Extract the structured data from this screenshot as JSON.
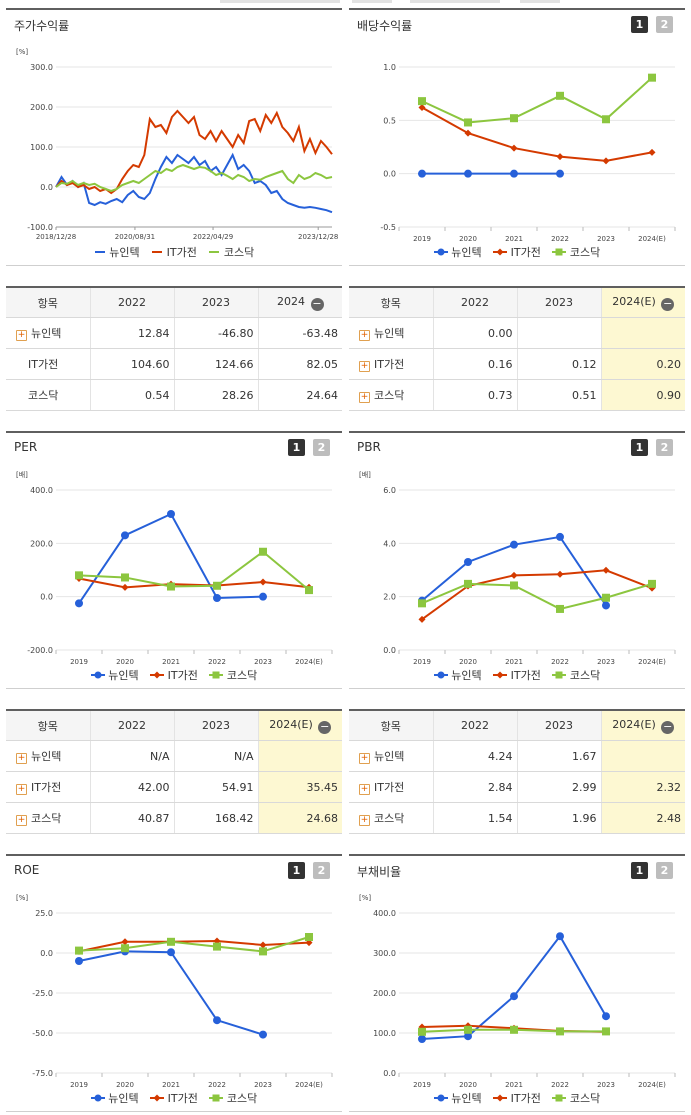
{
  "colors": {
    "newintech": "#2660d9",
    "itgajeon": "#d43a00",
    "kosdaq": "#8cc63f",
    "grid": "#e6e6e6",
    "highlight": "#fdf8d2"
  },
  "series_names": [
    "뉴인텍",
    "IT가전",
    "코스닥"
  ],
  "icons": {
    "expand": "plus-box-icon",
    "collapse": "minus-circle-icon",
    "page1": "page-1-button",
    "page2": "page-2-button"
  },
  "panels": {
    "stock_return": {
      "title": "주가수익률",
      "unit": "[%]"
    },
    "dividend": {
      "title": "배당수익률",
      "unit": "",
      "btn1": "1",
      "btn2": "2"
    },
    "per": {
      "title": "PER",
      "unit": "[배]",
      "btn1": "1",
      "btn2": "2"
    },
    "pbr": {
      "title": "PBR",
      "unit": "[배]",
      "btn1": "1",
      "btn2": "2"
    },
    "roe": {
      "title": "ROE",
      "unit": "[%]",
      "btn1": "1",
      "btn2": "2"
    },
    "debt": {
      "title": "부채비율",
      "unit": "[%]",
      "btn1": "1",
      "btn2": "2"
    }
  },
  "tables": {
    "stock_return": {
      "headers": [
        "항목",
        "2022",
        "2023",
        "2024"
      ],
      "rows": [
        {
          "name": "뉴인텍",
          "values": [
            "12.84",
            "-46.80",
            "-63.48"
          ]
        },
        {
          "name": "IT가전",
          "values": [
            "104.60",
            "124.66",
            "82.05"
          ]
        },
        {
          "name": "코스닥",
          "values": [
            "0.54",
            "28.26",
            "24.64"
          ]
        }
      ]
    },
    "dividend": {
      "headers": [
        "항목",
        "2022",
        "2023",
        "2024(E)"
      ],
      "rows": [
        {
          "name": "뉴인텍",
          "values": [
            "0.00",
            "",
            ""
          ]
        },
        {
          "name": "IT가전",
          "values": [
            "0.16",
            "0.12",
            "0.20"
          ]
        },
        {
          "name": "코스닥",
          "values": [
            "0.73",
            "0.51",
            "0.90"
          ]
        }
      ]
    },
    "per": {
      "headers": [
        "항목",
        "2022",
        "2023",
        "2024(E)"
      ],
      "rows": [
        {
          "name": "뉴인텍",
          "values": [
            "N/A",
            "N/A",
            ""
          ]
        },
        {
          "name": "IT가전",
          "values": [
            "42.00",
            "54.91",
            "35.45"
          ]
        },
        {
          "name": "코스닥",
          "values": [
            "40.87",
            "168.42",
            "24.68"
          ]
        }
      ]
    },
    "pbr": {
      "headers": [
        "항목",
        "2022",
        "2023",
        "2024(E)"
      ],
      "rows": [
        {
          "name": "뉴인텍",
          "values": [
            "4.24",
            "1.67",
            ""
          ]
        },
        {
          "name": "IT가전",
          "values": [
            "2.84",
            "2.99",
            "2.32"
          ]
        },
        {
          "name": "코스닥",
          "values": [
            "1.54",
            "1.96",
            "2.48"
          ]
        }
      ]
    }
  },
  "chart_data": [
    {
      "id": "stock_return",
      "type": "line",
      "title": "주가수익률",
      "ylabel": "[%]",
      "ylim": [
        -100,
        300
      ],
      "yticks": [
        "300.0",
        "200.0",
        "100.0",
        "0.0",
        "-100.0"
      ],
      "xtick_labels": [
        "2018/12/28",
        "2020/08/31",
        "2022/04/29",
        "2023/12/28"
      ],
      "xrange": [
        0,
        100
      ],
      "xtick_pos": [
        0,
        28.6,
        56.9,
        95.0
      ],
      "series": [
        {
          "name": "뉴인텍",
          "x": [
            0,
            2,
            4,
            6,
            8,
            10,
            12,
            14,
            16,
            18,
            20,
            22,
            24,
            26,
            28,
            30,
            32,
            34,
            36,
            38,
            40,
            42,
            44,
            46,
            48,
            50,
            52,
            54,
            56,
            58,
            60,
            62,
            64,
            66,
            68,
            70,
            72,
            74,
            76,
            78,
            80,
            82,
            84,
            86,
            88,
            90,
            92,
            94,
            96,
            98,
            100
          ],
          "values": [
            0,
            25,
            5,
            15,
            0,
            10,
            -40,
            -45,
            -38,
            -42,
            -35,
            -30,
            -38,
            -20,
            -10,
            -25,
            -30,
            -15,
            20,
            50,
            75,
            60,
            80,
            70,
            60,
            75,
            55,
            65,
            40,
            50,
            30,
            55,
            80,
            45,
            55,
            40,
            10,
            15,
            5,
            -15,
            -10,
            -30,
            -40,
            -45,
            -50,
            -52,
            -50,
            -52,
            -55,
            -58,
            -63
          ]
        },
        {
          "name": "IT가전",
          "x": [
            0,
            2,
            4,
            6,
            8,
            10,
            12,
            14,
            16,
            18,
            20,
            22,
            24,
            26,
            28,
            30,
            32,
            34,
            36,
            38,
            40,
            42,
            44,
            46,
            48,
            50,
            52,
            54,
            56,
            58,
            60,
            62,
            64,
            66,
            68,
            70,
            72,
            74,
            76,
            78,
            80,
            82,
            84,
            86,
            88,
            90,
            92,
            94,
            96,
            98,
            100
          ],
          "values": [
            0,
            15,
            5,
            10,
            0,
            5,
            -5,
            0,
            -10,
            -5,
            -15,
            -5,
            20,
            40,
            55,
            50,
            80,
            170,
            150,
            155,
            135,
            175,
            190,
            175,
            160,
            175,
            130,
            120,
            140,
            115,
            140,
            120,
            100,
            130,
            110,
            165,
            170,
            140,
            180,
            160,
            185,
            150,
            135,
            115,
            150,
            90,
            120,
            85,
            115,
            100,
            82
          ]
        },
        {
          "name": "코스닥",
          "x": [
            0,
            2,
            4,
            6,
            8,
            10,
            12,
            14,
            16,
            18,
            20,
            22,
            24,
            26,
            28,
            30,
            32,
            34,
            36,
            38,
            40,
            42,
            44,
            46,
            48,
            50,
            52,
            54,
            56,
            58,
            60,
            62,
            64,
            66,
            68,
            70,
            72,
            74,
            76,
            78,
            80,
            82,
            84,
            86,
            88,
            90,
            92,
            94,
            96,
            98,
            100
          ],
          "values": [
            0,
            10,
            8,
            15,
            5,
            10,
            5,
            8,
            0,
            -5,
            -10,
            -5,
            5,
            10,
            15,
            10,
            20,
            30,
            40,
            35,
            45,
            40,
            50,
            55,
            50,
            45,
            50,
            48,
            40,
            30,
            35,
            28,
            20,
            30,
            25,
            15,
            20,
            18,
            25,
            30,
            35,
            40,
            20,
            10,
            30,
            20,
            25,
            35,
            30,
            22,
            25
          ]
        }
      ]
    },
    {
      "id": "dividend",
      "type": "line",
      "title": "배당수익률",
      "ylim": [
        -0.5,
        1.0
      ],
      "yticks": [
        "1.0",
        "0.5",
        "0.0",
        "-0.5"
      ],
      "categories": [
        "2019",
        "2020",
        "2021",
        "2022",
        "2023",
        "2024(E)"
      ],
      "series": [
        {
          "name": "뉴인텍",
          "values": [
            0.0,
            0.0,
            0.0,
            0.0,
            null,
            null
          ]
        },
        {
          "name": "IT가전",
          "values": [
            0.62,
            0.38,
            0.24,
            0.16,
            0.12,
            0.2
          ]
        },
        {
          "name": "코스닥",
          "values": [
            0.68,
            0.48,
            0.52,
            0.73,
            0.51,
            0.9
          ]
        }
      ]
    },
    {
      "id": "per",
      "type": "line",
      "title": "PER",
      "ylabel": "[배]",
      "ylim": [
        -200,
        400
      ],
      "yticks": [
        "400.0",
        "200.0",
        "0.0",
        "-200.0"
      ],
      "categories": [
        "2019",
        "2020",
        "2021",
        "2022",
        "2023",
        "2024(E)"
      ],
      "series": [
        {
          "name": "뉴인텍",
          "values": [
            -25,
            230,
            310,
            -5,
            0,
            null
          ]
        },
        {
          "name": "IT가전",
          "values": [
            68,
            35,
            47,
            42.0,
            54.91,
            35.45
          ]
        },
        {
          "name": "코스닥",
          "values": [
            80,
            72,
            38,
            40.87,
            168.42,
            24.68
          ]
        }
      ]
    },
    {
      "id": "pbr",
      "type": "line",
      "title": "PBR",
      "ylabel": "[배]",
      "ylim": [
        0,
        6
      ],
      "yticks": [
        "6.0",
        "4.0",
        "2.0",
        "0.0"
      ],
      "categories": [
        "2019",
        "2020",
        "2021",
        "2022",
        "2023",
        "2024(E)"
      ],
      "series": [
        {
          "name": "뉴인텍",
          "values": [
            1.85,
            3.3,
            3.95,
            4.24,
            1.67,
            null
          ]
        },
        {
          "name": "IT가전",
          "values": [
            1.15,
            2.4,
            2.8,
            2.84,
            2.99,
            2.32
          ]
        },
        {
          "name": "코스닥",
          "values": [
            1.75,
            2.48,
            2.42,
            1.54,
            1.96,
            2.48
          ]
        }
      ]
    },
    {
      "id": "roe",
      "type": "line",
      "title": "ROE",
      "ylabel": "[%]",
      "ylim": [
        -75,
        25
      ],
      "yticks": [
        "25.0",
        "0.0",
        "-25.0",
        "-50.0",
        "-75.0"
      ],
      "categories": [
        "2019",
        "2020",
        "2021",
        "2022",
        "2023",
        "2024(E)"
      ],
      "series": [
        {
          "name": "뉴인텍",
          "values": [
            -5,
            1,
            0.5,
            -42,
            -51,
            null
          ]
        },
        {
          "name": "IT가전",
          "values": [
            1,
            7,
            7,
            7.5,
            5,
            6.5
          ]
        },
        {
          "name": "코스닥",
          "values": [
            1.5,
            3,
            7,
            4,
            1,
            10
          ]
        }
      ]
    },
    {
      "id": "debt",
      "type": "line",
      "title": "부채비율",
      "ylabel": "[%]",
      "ylim": [
        0,
        400
      ],
      "yticks": [
        "400.0",
        "300.0",
        "200.0",
        "100.0",
        "0.0"
      ],
      "categories": [
        "2019",
        "2020",
        "2021",
        "2022",
        "2023",
        "2024(E)"
      ],
      "series": [
        {
          "name": "뉴인텍",
          "values": [
            85,
            92,
            192,
            342,
            142,
            null
          ]
        },
        {
          "name": "IT가전",
          "values": [
            115,
            118,
            112,
            105,
            103,
            null
          ]
        },
        {
          "name": "코스닥",
          "values": [
            103,
            108,
            108,
            104,
            104,
            null
          ]
        }
      ]
    }
  ]
}
